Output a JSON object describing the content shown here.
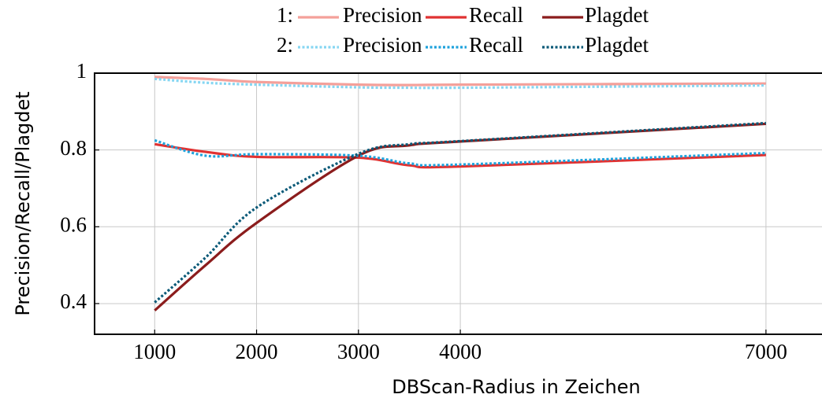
{
  "chart_data": {
    "type": "line",
    "xlabel": "DBScan-Radius in Zeichen",
    "ylabel": "Precision/Recall/Plagdet",
    "legend_groups": [
      "1:",
      "2:"
    ],
    "x": [
      1000,
      1500,
      2000,
      3000,
      3500,
      4000,
      7000
    ],
    "xlim": [
      410,
      7550
    ],
    "xticks": [
      1000,
      2000,
      3000,
      4000,
      7000
    ],
    "ylim": [
      0.32,
      1
    ],
    "yticks": [
      0.4,
      0.6,
      0.8,
      1
    ],
    "grid": true,
    "series": [
      {
        "name": "Precision",
        "group": 0,
        "style": "solid",
        "color": "#f4a09a",
        "values": [
          0.99,
          0.985,
          0.977,
          0.97,
          0.969,
          0.97,
          0.973
        ]
      },
      {
        "name": "Recall",
        "group": 0,
        "style": "solid",
        "color": "#e03232",
        "values": [
          0.815,
          0.795,
          0.782,
          0.78,
          0.76,
          0.757,
          0.787
        ]
      },
      {
        "name": "Plagdet",
        "group": 0,
        "style": "solid",
        "color": "#8b1c1c",
        "values": [
          0.382,
          0.5,
          0.61,
          0.785,
          0.812,
          0.822,
          0.868
        ]
      },
      {
        "name": "Precision",
        "group": 1,
        "style": "dotted",
        "color": "#86d6f2",
        "values": [
          0.985,
          0.975,
          0.97,
          0.963,
          0.962,
          0.962,
          0.968
        ]
      },
      {
        "name": "Recall",
        "group": 1,
        "style": "dotted",
        "color": "#1ea2dc",
        "values": [
          0.825,
          0.785,
          0.789,
          0.785,
          0.765,
          0.762,
          0.792
        ]
      },
      {
        "name": "Plagdet",
        "group": 1,
        "style": "dotted",
        "color": "#0b5a78",
        "values": [
          0.403,
          0.52,
          0.65,
          0.79,
          0.815,
          0.823,
          0.87
        ]
      }
    ]
  }
}
